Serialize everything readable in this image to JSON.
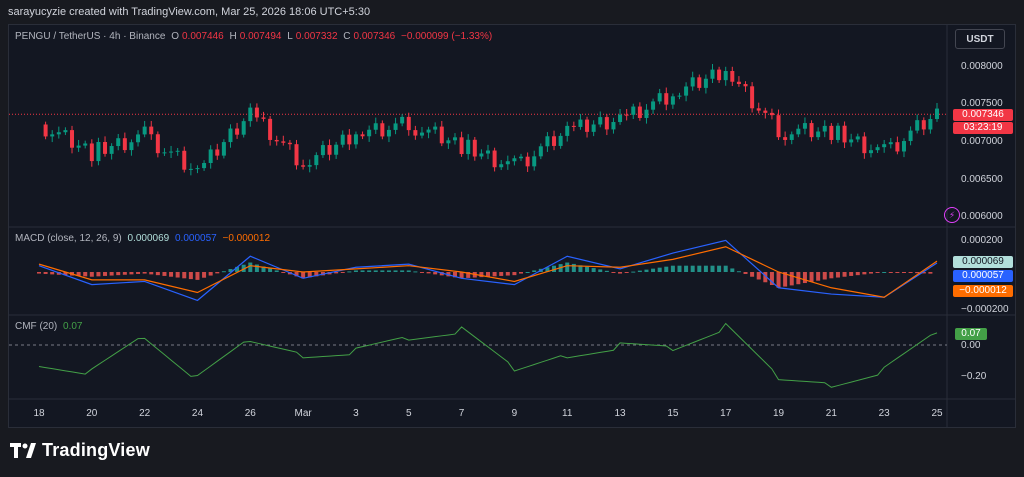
{
  "header": {
    "attribution": "sarayucyzie created with TradingView.com, Mar 25, 2026 18:06 UTC+5:30"
  },
  "legend": {
    "symbol": "PENGU / TetherUS · 4h · Binance",
    "open_label": "O",
    "open": "0.007446",
    "high_label": "H",
    "high": "0.007494",
    "low_label": "L",
    "low": "0.007332",
    "close_label": "C",
    "close": "0.007346",
    "change": "−0.000099 (−1.33%)"
  },
  "currency_button": "USDT",
  "macd_legend": {
    "title": "MACD (close, 12, 26, 9)",
    "v1": "0.000069",
    "v2": "0.000057",
    "v3": "−0.000012"
  },
  "cmf_legend": {
    "title": "CMF (20)",
    "value": "0.07"
  },
  "price_axis": [
    "0.008000",
    "0.007500",
    "0.007000",
    "0.006500",
    "0.006000"
  ],
  "macd_axis": [
    "0.000200",
    "−0.000200"
  ],
  "cmf_axis": [
    "0.00",
    "−0.20"
  ],
  "badges": {
    "price": "0.007346",
    "countdown": "03:23:19",
    "macd1": "0.000069",
    "macd2": "0.000057",
    "macd3": "−0.000012",
    "cmf": "0.07"
  },
  "x_axis": [
    "18",
    "20",
    "22",
    "24",
    "26",
    "Mar",
    "3",
    "5",
    "7",
    "9",
    "11",
    "13",
    "15",
    "17",
    "19",
    "21",
    "23",
    "25"
  ],
  "brand": {
    "name": "TradingView"
  },
  "colors": {
    "up": "#089981",
    "down": "#f23645",
    "macd": "#2962ff",
    "signal": "#ff6d00",
    "cmf": "#43a047",
    "badge_price": "#f23645",
    "badge_macd1": "#b2dfdb",
    "badge_macd2": "#2962ff",
    "badge_macd3": "#ff6d00",
    "badge_cmf": "#43a047"
  },
  "chart_data": [
    {
      "type": "candlestick",
      "title": "PENGU / TetherUS · 4h · Binance",
      "x": [
        "Feb 18",
        "Feb 20",
        "Feb 22",
        "Feb 24",
        "Feb 26",
        "Mar 1",
        "Mar 3",
        "Mar 5",
        "Mar 7",
        "Mar 9",
        "Mar 11",
        "Mar 13",
        "Mar 15",
        "Mar 17",
        "Mar 19",
        "Mar 21",
        "Mar 23",
        "Mar 25"
      ],
      "close": [
        0.0072,
        0.0068,
        0.00705,
        0.0065,
        0.0074,
        0.0066,
        0.0071,
        0.0072,
        0.0069,
        0.0066,
        0.0071,
        0.0073,
        0.0076,
        0.008,
        0.0071,
        0.0071,
        0.0068,
        0.007346
      ],
      "ylim": [
        0.0058,
        0.0085
      ],
      "last": {
        "open": 0.007446,
        "high": 0.007494,
        "low": 0.007332,
        "close": 0.007346
      }
    },
    {
      "type": "line",
      "title": "MACD (close, 12, 26, 9)",
      "x": [
        "Feb 18",
        "Feb 20",
        "Feb 22",
        "Feb 24",
        "Feb 26",
        "Mar 1",
        "Mar 3",
        "Mar 5",
        "Mar 7",
        "Mar 9",
        "Mar 11",
        "Mar 13",
        "Mar 15",
        "Mar 17",
        "Mar 19",
        "Mar 21",
        "Mar 23",
        "Mar 25"
      ],
      "series": [
        {
          "values": [
            4e-05,
            -8e-05,
            -6e-05,
            -0.00018,
            0.0001,
            -4e-05,
            3e-05,
            5e-05,
            -4e-05,
            -8e-05,
            0.0001,
            2e-05,
            0.00012,
            0.0002,
            -0.0001,
            -0.00014,
            -0.00016,
            5.7e-05
          ]
        },
        {
          "values": [
            5e-05,
            -5e-05,
            -5e-05,
            -0.00013,
            4e-05,
            0.0,
            2e-05,
            4e-05,
            0.0,
            -6e-05,
            4e-05,
            3e-05,
            8e-05,
            0.00016,
            0.0,
            -0.0001,
            -0.00016,
            6.9e-05
          ]
        }
      ],
      "histogram": [
        -1e-05,
        -3e-05,
        -1e-05,
        -5e-05,
        6e-05,
        -4e-05,
        1e-05,
        1e-05,
        -4e-05,
        -2e-05,
        6e-05,
        -1e-05,
        4e-05,
        4e-05,
        -0.0001,
        -4e-05,
        0.0,
        -1.2e-05
      ],
      "ylim": [
        -0.00026,
        0.00026
      ]
    },
    {
      "type": "line",
      "title": "CMF (20)",
      "x": [
        "Feb 18",
        "Feb 20",
        "Feb 22",
        "Feb 24",
        "Feb 26",
        "Mar 1",
        "Mar 3",
        "Mar 5",
        "Mar 7",
        "Mar 9",
        "Mar 11",
        "Mar 13",
        "Mar 15",
        "Mar 17",
        "Mar 19",
        "Mar 21",
        "Mar 23",
        "Mar 25"
      ],
      "series": [
        {
          "values": [
            -0.1,
            -0.15,
            0.05,
            -0.2,
            0.02,
            -0.05,
            -0.03,
            0.04,
            0.08,
            -0.15,
            -0.05,
            0.0,
            -0.02,
            0.1,
            -0.2,
            -0.22,
            -0.14,
            0.07
          ]
        }
      ],
      "ylim": [
        -0.3,
        0.15
      ]
    }
  ]
}
